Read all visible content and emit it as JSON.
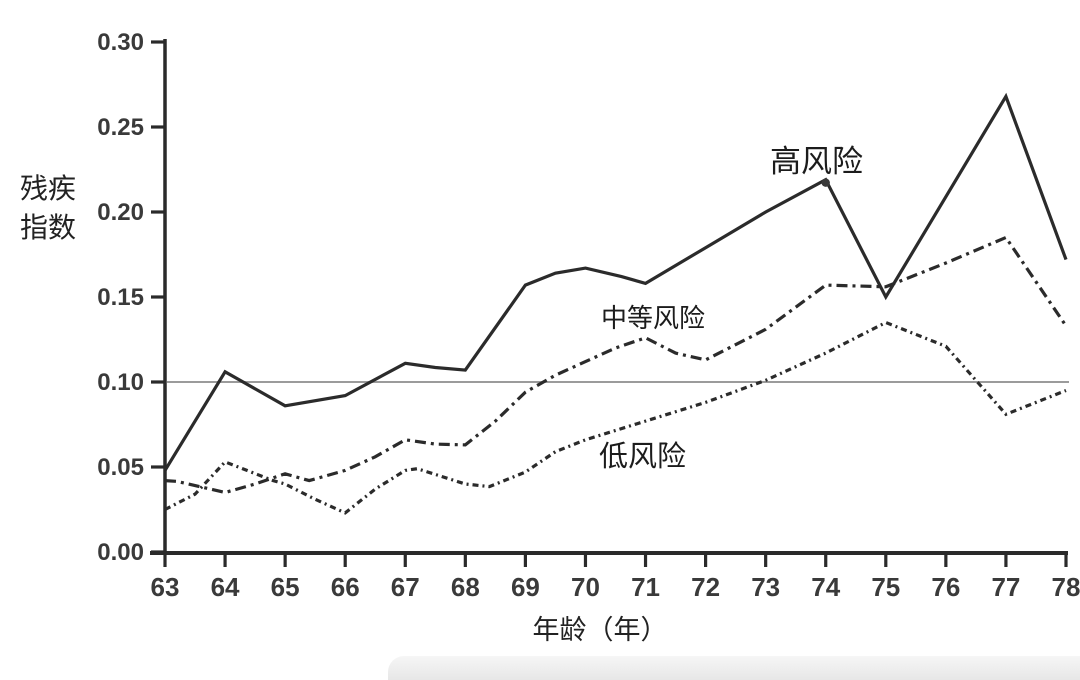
{
  "page": {
    "background": "#ffffff"
  },
  "chart_data": {
    "type": "line",
    "title": "",
    "xlabel": "年龄（年）",
    "ylabel": "残疾指数",
    "xlim": [
      63,
      78
    ],
    "ylim": [
      0,
      0.3
    ],
    "x_ticks": [
      "63",
      "64",
      "65",
      "66",
      "67",
      "68",
      "69",
      "70",
      "71",
      "72",
      "73",
      "74",
      "75",
      "76",
      "77",
      "78"
    ],
    "y_ticks": [
      "0.00",
      "0.05",
      "0.10",
      "0.15",
      "0.20",
      "0.25",
      "0.30"
    ],
    "grid": false,
    "legend_position": "inline-labels",
    "reference_line": {
      "value": 0.1,
      "color": "#9b9b9b"
    },
    "line_color": "#2b2b2b",
    "text_color": "#3a3a3a",
    "series": [
      {
        "name": "高风险",
        "style": "solid",
        "color": "#2b2b2b",
        "points": [
          [
            63,
            0.048
          ],
          [
            64,
            0.106
          ],
          [
            65,
            0.086
          ],
          [
            66,
            0.092
          ],
          [
            67,
            0.111
          ],
          [
            67.5,
            0.1085
          ],
          [
            68,
            0.107
          ],
          [
            69,
            0.157
          ],
          [
            69.5,
            0.164
          ],
          [
            70,
            0.167
          ],
          [
            70.6,
            0.162
          ],
          [
            71,
            0.158
          ],
          [
            72,
            0.179
          ],
          [
            73,
            0.2
          ],
          [
            74,
            0.219
          ],
          [
            75,
            0.15
          ],
          [
            76,
            0.209
          ],
          [
            77,
            0.268
          ],
          [
            78,
            0.172
          ]
        ]
      },
      {
        "name": "中等风险",
        "style": "dashed",
        "color": "#2b2b2b",
        "points": [
          [
            63,
            0.042
          ],
          [
            63.2,
            0.0415
          ],
          [
            64,
            0.035
          ],
          [
            64.5,
            0.04
          ],
          [
            65,
            0.046
          ],
          [
            65.4,
            0.042
          ],
          [
            66,
            0.048
          ],
          [
            66.5,
            0.056
          ],
          [
            67,
            0.066
          ],
          [
            67.5,
            0.0635
          ],
          [
            68,
            0.063
          ],
          [
            68.5,
            0.077
          ],
          [
            69,
            0.094
          ],
          [
            69.5,
            0.104
          ],
          [
            70,
            0.112
          ],
          [
            70.5,
            0.12
          ],
          [
            71,
            0.126
          ],
          [
            71.5,
            0.117
          ],
          [
            72,
            0.113
          ],
          [
            73,
            0.131
          ],
          [
            74,
            0.157
          ],
          [
            75,
            0.156
          ],
          [
            76,
            0.17
          ],
          [
            77,
            0.185
          ],
          [
            78,
            0.133
          ]
        ]
      },
      {
        "name": "低风险",
        "style": "dash-dot",
        "color": "#2b2b2b",
        "points": [
          [
            63,
            0.025
          ],
          [
            63.5,
            0.034
          ],
          [
            64,
            0.053
          ],
          [
            64.8,
            0.042
          ],
          [
            65,
            0.04
          ],
          [
            65.5,
            0.031
          ],
          [
            66,
            0.023
          ],
          [
            66.5,
            0.037
          ],
          [
            67,
            0.048
          ],
          [
            67.2,
            0.049
          ],
          [
            68,
            0.04
          ],
          [
            68.4,
            0.0385
          ],
          [
            69,
            0.047
          ],
          [
            69.5,
            0.059
          ],
          [
            70,
            0.066
          ],
          [
            71,
            0.077
          ],
          [
            72,
            0.088
          ],
          [
            73,
            0.101
          ],
          [
            74,
            0.117
          ],
          [
            75,
            0.135
          ],
          [
            76,
            0.121
          ],
          [
            77,
            0.081
          ],
          [
            78,
            0.095
          ]
        ]
      }
    ],
    "annotations": {
      "peak_dot": {
        "x": 74,
        "y": 0.219
      }
    }
  }
}
